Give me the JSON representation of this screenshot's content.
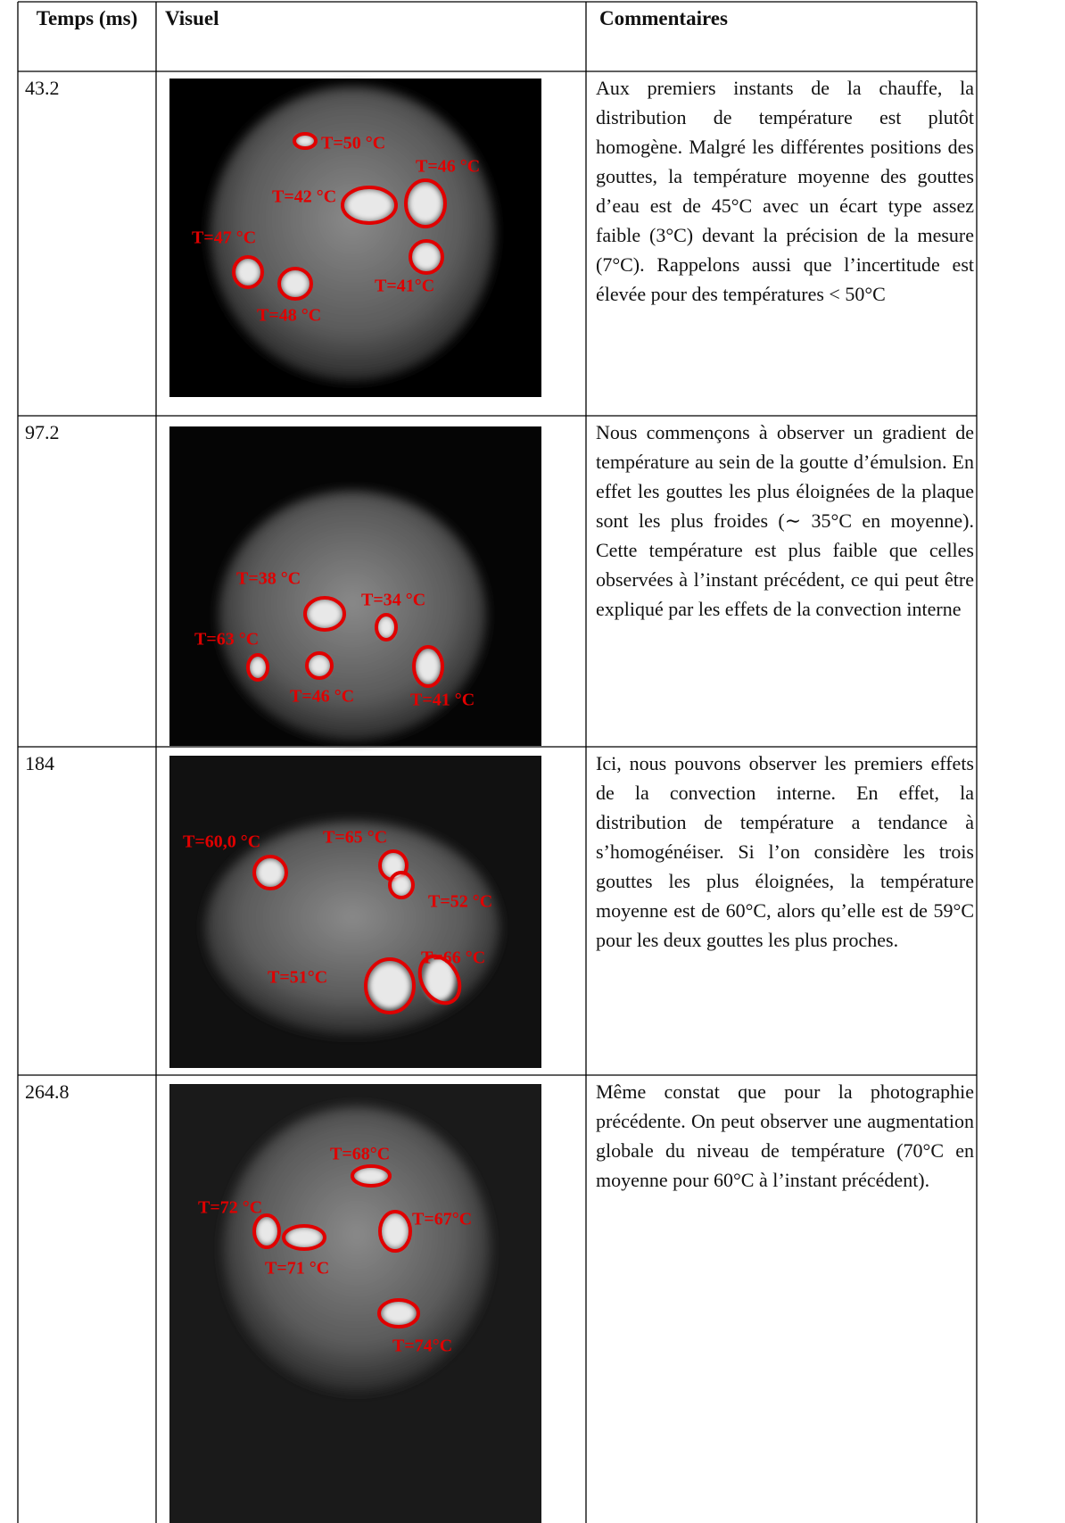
{
  "table": {
    "headers": [
      "Temps (ms)",
      "Visuel",
      "Commentaires"
    ],
    "rows": [
      {
        "time": "43.2",
        "labels": [
          "T=50 °C",
          "T=46 °C",
          "T=42 °C",
          "T=47 °C",
          "T=48 °C",
          "T=41°C"
        ],
        "comment": "Aux premiers instants de la chauffe, la distribution de température est plutôt homogène. Malgré les différentes positions des gouttes, la température moyenne des gouttes d’eau est de 45°C avec un écart type assez faible (3°C) devant la précision de la mesure (7°C). Rappelons aussi que l’incertitude est élevée pour des températures < 50°C"
      },
      {
        "time": "97.2",
        "labels": [
          "T=38 °C",
          "T=34 °C",
          "T=63 °C",
          "T=46 °C",
          "T=41 °C"
        ],
        "comment": "Nous commençons à observer un gradient de température au sein de la goutte d’émulsion. En effet les gouttes les plus éloignées de la plaque sont les plus froides (∼ 35°C en moyenne). Cette température est plus faible que celles observées à l’instant précédent, ce qui peut être expliqué par les effets de la convection interne"
      },
      {
        "time": "184",
        "labels": [
          "T=65 °C",
          "T=60,0 °C",
          "T=52 °C",
          "T=66 °C",
          "T=51°C"
        ],
        "comment": "Ici, nous pouvons observer les premiers effets de la convection interne. En effet, la distribution de température a tendance à s’homogénéiser. Si l’on considère les trois gouttes les plus éloignées, la température moyenne est de 60°C, alors qu’elle est de 59°C pour les deux gouttes les plus proches."
      },
      {
        "time": "264.8",
        "labels": [
          "T=68°C",
          "T=72 °C",
          "T=71 °C",
          "T=67°C",
          "T=74°C"
        ],
        "comment": "Même constat que pour la photographie précédente. On peut observer une augmentation globale du niveau de température (70°C en moyenne pour 60°C à l’instant précédent)."
      }
    ]
  }
}
